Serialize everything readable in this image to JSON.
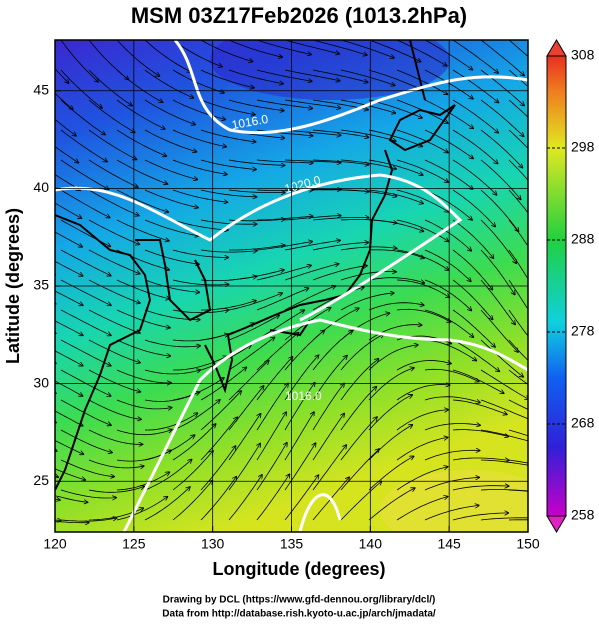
{
  "chart_data": {
    "type": "map",
    "title": "MSM 03Z17Feb2026 (1013.2hPa)",
    "x_label": "Longitude (degrees)",
    "y_label": "Latitude  (degrees)",
    "xlim": [
      120,
      150
    ],
    "xticks": [
      120,
      125,
      130,
      135,
      140,
      145,
      150
    ],
    "ylim": [
      22.4,
      47.6
    ],
    "yticks": [
      25,
      30,
      35,
      40,
      45
    ],
    "grid": true,
    "colorbar": {
      "lim": [
        258,
        308
      ],
      "ticks": [
        258,
        268,
        278,
        288,
        298,
        308
      ]
    },
    "contour_labels": [
      "1016.0",
      "1020.0",
      "1016.0"
    ],
    "credits": [
      "Drawing by DCL (https://www.gfd-dennou.org/library/dcl/)",
      "Data from http://database.rish.kyoto-u.ac.jp/arch/jmadata/"
    ]
  }
}
